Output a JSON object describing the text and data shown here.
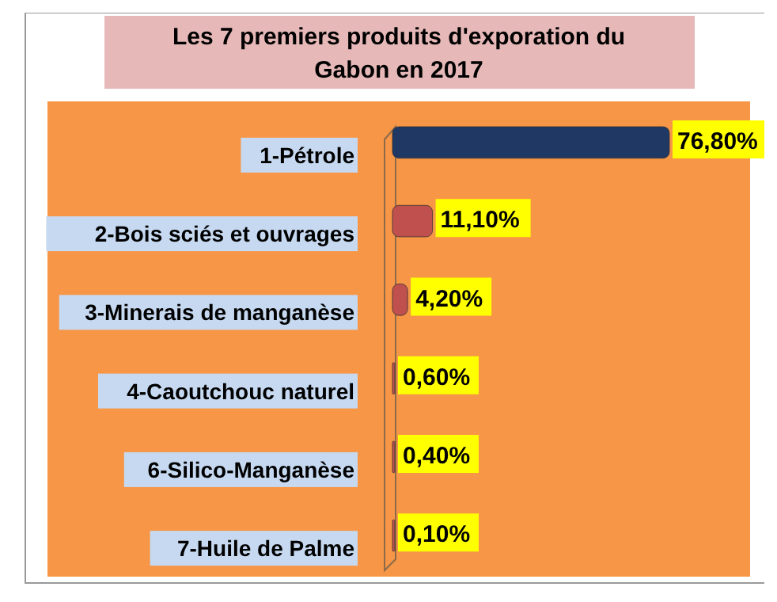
{
  "chart_data": {
    "type": "bar",
    "orientation": "horizontal",
    "title": "Les 7 premiers produits d'exporation du Gabon en 2017",
    "categories": [
      "1-Pétrole",
      "2-Bois sciés et ouvrages",
      "3-Minerais de manganèse",
      "4-Caoutchouc naturel",
      "6-Silico-Manganèse",
      "7-Huile de Palme"
    ],
    "values": [
      76.8,
      11.1,
      4.2,
      0.6,
      0.4,
      0.1
    ],
    "value_labels": [
      "76,80%",
      "11,10%",
      "4,20%",
      "0,60%",
      "0,40%",
      "0,10%"
    ],
    "colors": [
      "#1f3864",
      "#c0504d",
      "#c0504d",
      "#c0504d",
      "#c0504d",
      "#c0504d"
    ]
  }
}
